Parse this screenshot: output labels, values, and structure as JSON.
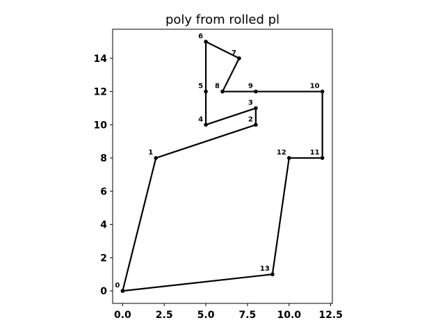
{
  "chart_data": {
    "type": "line",
    "title": "poly from rolled pl",
    "xlabel": "",
    "ylabel": "",
    "xlim": [
      -0.6,
      12.6
    ],
    "ylim": [
      -0.75,
      15.75
    ],
    "xticks": [
      0.0,
      2.5,
      5.0,
      7.5,
      10.0,
      12.5
    ],
    "xtick_labels": [
      "0.0",
      "2.5",
      "5.0",
      "7.5",
      "10.0",
      "12.5"
    ],
    "yticks": [
      0,
      2,
      4,
      6,
      8,
      10,
      12,
      14
    ],
    "ytick_labels": [
      "0",
      "2",
      "4",
      "6",
      "8",
      "10",
      "12",
      "14"
    ],
    "grid": false,
    "closed": true,
    "line_color": "#000000",
    "points": [
      {
        "label": "0",
        "x": 0,
        "y": 0
      },
      {
        "label": "1",
        "x": 2,
        "y": 8
      },
      {
        "label": "2",
        "x": 8,
        "y": 10
      },
      {
        "label": "3",
        "x": 8,
        "y": 11
      },
      {
        "label": "4",
        "x": 5,
        "y": 10
      },
      {
        "label": "5",
        "x": 5,
        "y": 12
      },
      {
        "label": "6",
        "x": 5,
        "y": 15
      },
      {
        "label": "7",
        "x": 7,
        "y": 14
      },
      {
        "label": "8",
        "x": 6,
        "y": 12
      },
      {
        "label": "9",
        "x": 8,
        "y": 12
      },
      {
        "label": "10",
        "x": 12,
        "y": 12
      },
      {
        "label": "11",
        "x": 12,
        "y": 8
      },
      {
        "label": "12",
        "x": 10,
        "y": 8
      },
      {
        "label": "13",
        "x": 9,
        "y": 1
      }
    ]
  }
}
